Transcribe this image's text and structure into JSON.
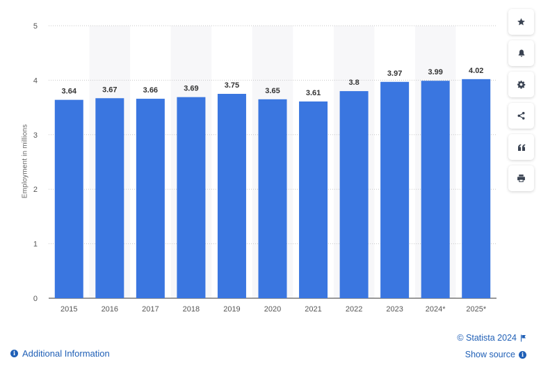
{
  "chart_data": {
    "type": "bar",
    "categories": [
      "2015",
      "2016",
      "2017",
      "2018",
      "2019",
      "2020",
      "2021",
      "2022",
      "2023",
      "2024*",
      "2025*"
    ],
    "values": [
      3.64,
      3.67,
      3.66,
      3.69,
      3.75,
      3.65,
      3.61,
      3.8,
      3.97,
      3.99,
      4.02
    ],
    "value_labels": [
      "3.64",
      "3.67",
      "3.66",
      "3.69",
      "3.75",
      "3.65",
      "3.61",
      "3.8",
      "3.97",
      "3.99",
      "4.02"
    ],
    "ylabel": "Employment in millions",
    "xlabel": "",
    "ylim": [
      0,
      5
    ],
    "yticks": [
      0,
      1,
      2,
      3,
      4,
      5
    ],
    "grid": true,
    "bar_color": "#3a76e0",
    "band_color": "#f7f7f9"
  },
  "toolbar": {
    "buttons": [
      {
        "name": "favorite-button",
        "icon": "star-icon"
      },
      {
        "name": "notification-button",
        "icon": "bell-icon"
      },
      {
        "name": "settings-button",
        "icon": "gear-icon"
      },
      {
        "name": "share-button",
        "icon": "share-icon"
      },
      {
        "name": "cite-button",
        "icon": "quote-icon"
      },
      {
        "name": "print-button",
        "icon": "printer-icon"
      }
    ]
  },
  "footer": {
    "additional_info": "Additional Information",
    "credit": "© Statista 2024",
    "show_source": "Show source"
  },
  "colors": {
    "link": "#1f5fb6",
    "icon": "#3a4352"
  }
}
